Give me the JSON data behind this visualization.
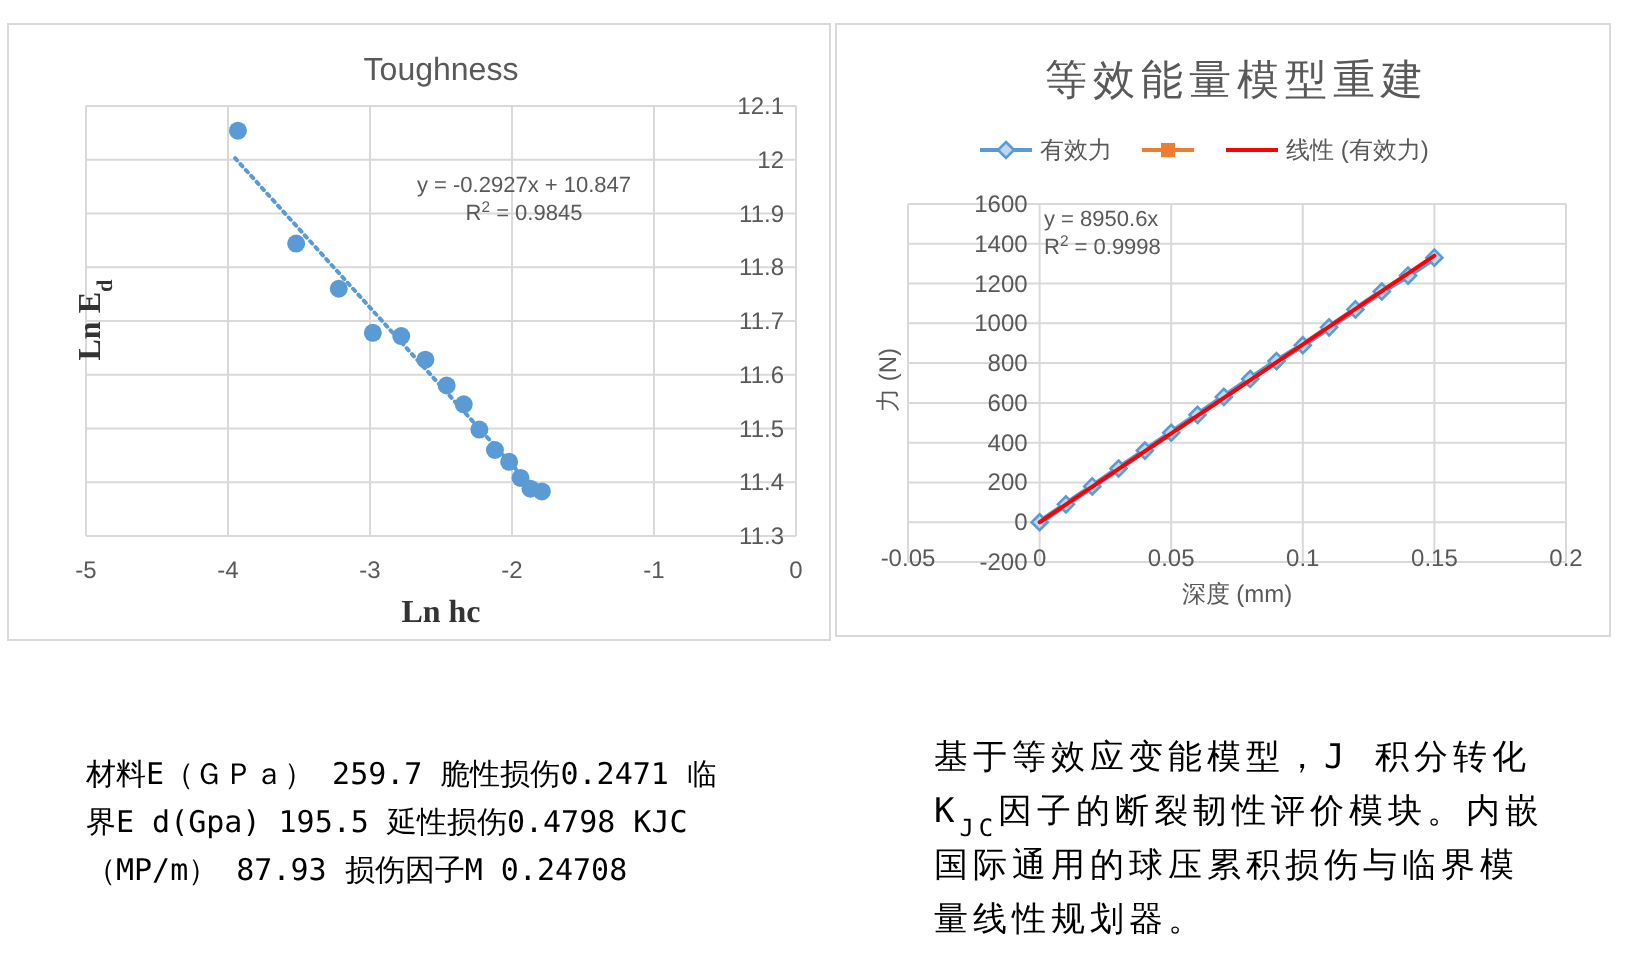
{
  "chart_data": [
    {
      "type": "scatter",
      "title": "Toughness",
      "xlabel": "Ln hc",
      "ylabel": "Ln E$_{d}$",
      "xlim": [
        -5,
        0
      ],
      "xticks": [
        -5,
        -4,
        -3,
        -2,
        -1,
        0
      ],
      "ylim": [
        11.3,
        12.1
      ],
      "yticks": [
        11.3,
        11.4,
        11.5,
        11.6,
        11.7,
        11.8,
        11.9,
        12,
        12.1
      ],
      "grid": true,
      "legend": false,
      "series": [
        {
          "color": "#5b9bd5",
          "marker": "circle",
          "x": [
            -3.93,
            -3.52,
            -3.22,
            -2.98,
            -2.78,
            -2.61,
            -2.46,
            -2.34,
            -2.23,
            -2.12,
            -2.02,
            -1.94,
            -1.87,
            -1.79
          ],
          "values": [
            12.054,
            11.844,
            11.76,
            11.678,
            11.672,
            11.628,
            11.58,
            11.545,
            11.498,
            11.46,
            11.438,
            11.408,
            11.388,
            11.383
          ]
        },
        {
          "type": "line",
          "color": "#5b9bd5",
          "marker": "none",
          "line_style": "dotted",
          "x": [
            -3.95,
            -1.79
          ],
          "values": [
            12.003,
            11.371
          ]
        }
      ],
      "annotations": [
        "y = -0.2927x + 10.847",
        "R$^{2}$ = 0.9845"
      ]
    },
    {
      "type": "line",
      "title": "等效能量模型重建",
      "xlabel": "深度 (mm)",
      "ylabel": "力 (N)",
      "xlim": [
        -0.05,
        0.2
      ],
      "xticks": [
        -0.05,
        0,
        0.05,
        0.1,
        0.15,
        0.2
      ],
      "ylim": [
        -200,
        1600
      ],
      "yticks": [
        -200,
        0,
        200,
        400,
        600,
        800,
        1000,
        1200,
        1400,
        1600
      ],
      "grid": true,
      "legend": "top",
      "series": [
        {
          "name": "有效力",
          "color": "#5b9bd5",
          "marker": "diamond",
          "x": [
            0,
            0.01,
            0.02,
            0.03,
            0.04,
            0.05,
            0.06,
            0.07,
            0.08,
            0.09,
            0.1,
            0.11,
            0.12,
            0.13,
            0.14,
            0.15
          ],
          "values": [
            0,
            90,
            180,
            270,
            360,
            450,
            540,
            630,
            720,
            810,
            890,
            980,
            1070,
            1160,
            1240,
            1330
          ]
        },
        {
          "color": "#ed7d31",
          "marker": "square"
        },
        {
          "name": "线性 (有效力)",
          "color": "#ff0000",
          "marker": "none",
          "line_style": "solid",
          "x": [
            0,
            0.15
          ],
          "values": [
            0,
            1340
          ]
        }
      ],
      "annotations": [
        "y = 8950.6x",
        "R$^{2}$ = 0.9998"
      ]
    },
    {
      "type": "other",
      "annotations": [
        "材料E（ＧＰａ） 259.7 脆性损伤0.2471 临",
        "界E d(Gpa) 195.5 延性损伤0.4798 KJC",
        "（MP/m） 87.93 损伤因子M 0.24708"
      ]
    },
    {
      "type": "other",
      "annotations": [
        "基于等效应变能模型，J 积分转化",
        "K$_{JC}$因子的断裂韧性评价模块。内嵌",
        "国际通用的球压累积损伤与临界模",
        "量线性规划器。"
      ]
    }
  ]
}
